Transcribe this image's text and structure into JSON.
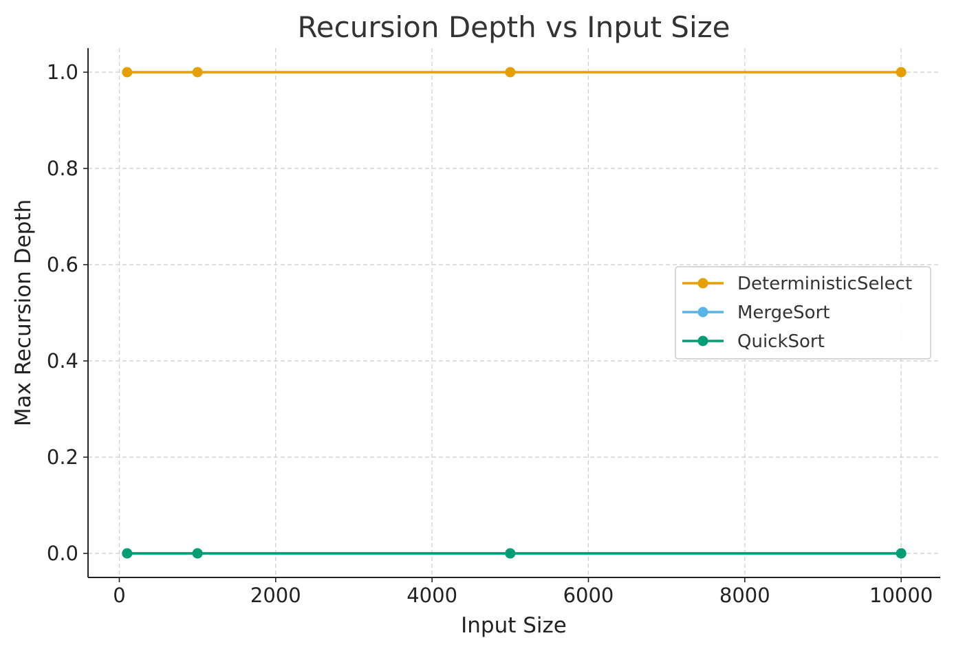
{
  "chart_data": {
    "type": "line",
    "title": "Recursion Depth vs Input Size",
    "xlabel": "Input Size",
    "ylabel": "Max Recursion Depth",
    "xlim": [
      -400,
      10500
    ],
    "ylim": [
      -0.05,
      1.05
    ],
    "xticks": [
      0,
      2000,
      4000,
      6000,
      8000,
      10000
    ],
    "xtick_labels": [
      "0",
      "2000",
      "4000",
      "6000",
      "8000",
      "10000"
    ],
    "yticks": [
      0.0,
      0.2,
      0.4,
      0.6,
      0.8,
      1.0
    ],
    "ytick_labels": [
      "0.0",
      "0.2",
      "0.4",
      "0.6",
      "0.8",
      "1.0"
    ],
    "grid": true,
    "legend_position": "center-right",
    "x": [
      100,
      1000,
      5000,
      10000
    ],
    "series": [
      {
        "name": "DeterministicSelect",
        "color": "#E69F00",
        "values": [
          1,
          1,
          1,
          1
        ]
      },
      {
        "name": "MergeSort",
        "color": "#56B4E9",
        "values": [
          0,
          0,
          0,
          0
        ]
      },
      {
        "name": "QuickSort",
        "color": "#009E73",
        "values": [
          0,
          0,
          0,
          0
        ]
      }
    ]
  }
}
